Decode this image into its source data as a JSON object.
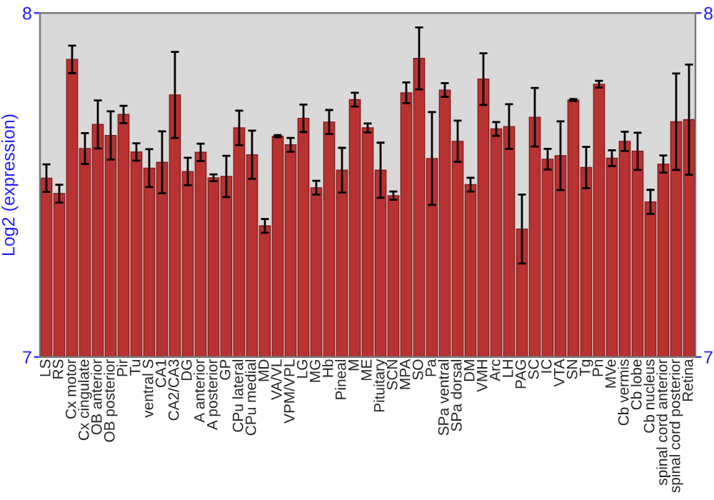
{
  "chart_data": {
    "type": "bar",
    "ylabel": "Log2 (expression)",
    "categories": [
      "LS",
      "RS",
      "Cx motor",
      "Cx cingulate",
      "OB anterior",
      "OB posterior",
      "Pir",
      "Tu",
      "ventral S",
      "CA1",
      "CA2/CA3",
      "DG",
      "A anterior",
      "A posterior",
      "GP",
      "CPu lateral",
      "CPu medial",
      "MD",
      "VA/VL",
      "VPM/VPL",
      "LG",
      "MG",
      "Hb",
      "Pineal",
      "M",
      "ME",
      "Pituitary",
      "SCN",
      "MPA",
      "SO",
      "Pa",
      "SPa ventral",
      "SPa dorsal",
      "DM",
      "VMH",
      "Arc",
      "LH",
      "PAG",
      "SC",
      "IC",
      "VTA",
      "SN",
      "Tg",
      "Pn",
      "MVe",
      "Cb vermis",
      "Cb lobe",
      "Cb nucleus",
      "spinal cord anterior",
      "spinal cord posterior",
      "Retina"
    ],
    "values": [
      7.52,
      7.475,
      7.865,
      7.606,
      7.676,
      7.644,
      7.705,
      7.596,
      7.549,
      7.566,
      7.762,
      7.539,
      7.595,
      7.521,
      7.525,
      7.666,
      7.588,
      7.381,
      7.642,
      7.617,
      7.694,
      7.492,
      7.683,
      7.543,
      7.748,
      7.666,
      7.543,
      7.469,
      7.768,
      7.868,
      7.577,
      7.776,
      7.627,
      7.501,
      7.808,
      7.663,
      7.67,
      7.372,
      7.697,
      7.575,
      7.585,
      7.747,
      7.551,
      7.793,
      7.578,
      7.627,
      7.598,
      7.451,
      7.561,
      7.684,
      7.69
    ],
    "errors": [
      0.04,
      0.026,
      0.04,
      0.045,
      0.07,
      0.07,
      0.025,
      0.025,
      0.055,
      0.09,
      0.125,
      0.04,
      0.025,
      0.01,
      0.06,
      0.05,
      0.07,
      0.02,
      0.003,
      0.02,
      0.04,
      0.02,
      0.035,
      0.065,
      0.02,
      0.013,
      0.08,
      0.012,
      0.03,
      0.09,
      0.135,
      0.02,
      0.06,
      0.02,
      0.075,
      0.02,
      0.065,
      0.1,
      0.085,
      0.03,
      0.1,
      0.003,
      0.06,
      0.01,
      0.023,
      0.028,
      0.054,
      0.035,
      0.025,
      0.14,
      0.16
    ],
    "color": "#b83232",
    "ylim": [
      7,
      8
    ],
    "yticks": [
      7,
      8
    ],
    "y2lim": [
      7,
      8
    ],
    "y2ticks": [
      7,
      8
    ],
    "grid": false
  }
}
